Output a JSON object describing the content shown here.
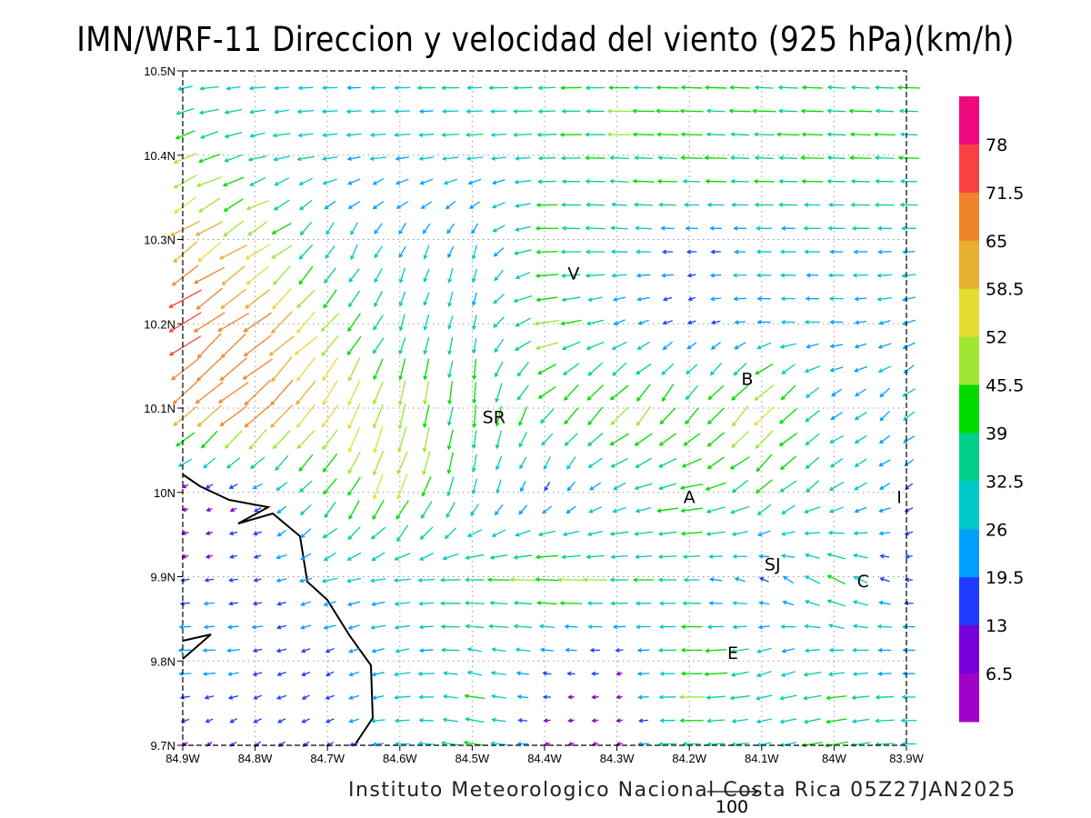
{
  "title": "IMN/WRF-11 Direccion y velocidad del viento (925 hPa)(km/h)",
  "footer": "Instituto Meteorologico Nacional Costa Rica 05Z27JAN2025",
  "chart_data": {
    "type": "vector-field",
    "title": "IMN/WRF-11 Direccion y velocidad del viento (925 hPa)(km/h)",
    "units": "km/h",
    "xlim": [
      -84.9,
      -83.9
    ],
    "ylim": [
      9.7,
      10.5
    ],
    "x_ticks": [
      "84.9W",
      "84.8W",
      "84.7W",
      "84.6W",
      "84.5W",
      "84.4W",
      "84.3W",
      "84.2W",
      "84.1W",
      "84W",
      "83.9W"
    ],
    "y_ticks": [
      "10.5N",
      "10.4N",
      "10.3N",
      "10.2N",
      "10.1N",
      "10N",
      "9.9N",
      "9.8N",
      "9.7N"
    ],
    "grid": "dotted",
    "reference_vector": {
      "value": 100,
      "label": "100"
    },
    "colorbar": {
      "labels": [
        "78",
        "71.5",
        "65",
        "58.5",
        "52",
        "45.5",
        "39",
        "32.5",
        "26",
        "19.5",
        "13",
        "6.5"
      ],
      "thresholds": [
        78,
        71.5,
        65,
        58.5,
        52,
        45.5,
        39,
        32.5,
        26,
        19.5,
        13,
        6.5
      ],
      "colors": [
        "#f0087f",
        "#fa4141",
        "#f0822a",
        "#e6af2d",
        "#e6dc32",
        "#a0e632",
        "#00dc00",
        "#00d28c",
        "#00c8c8",
        "#00a0ff",
        "#1e3cff",
        "#7800dc",
        "#a000c8"
      ]
    },
    "field_grid": {
      "description": "coarse sampled wind: [direction-to (deg, compass), speed km/h] per lon column (84.9W..83.9W) per lat row (10.5N..9.7N)",
      "lats": [
        10.5,
        10.4,
        10.3,
        10.2,
        10.1,
        10.0,
        9.9,
        9.8,
        9.7
      ],
      "lons": [
        -84.9,
        -84.8,
        -84.7,
        -84.6,
        -84.5,
        -84.4,
        -84.3,
        -84.2,
        -84.1,
        -84.0,
        -83.9
      ],
      "dir": [
        [
          265,
          268,
          270,
          270,
          270,
          268,
          270,
          272,
          272,
          272,
          272
        ],
        [
          250,
          255,
          262,
          265,
          265,
          268,
          272,
          272,
          272,
          272,
          272
        ],
        [
          235,
          240,
          210,
          205,
          200,
          270,
          275,
          270,
          270,
          270,
          270
        ],
        [
          235,
          230,
          220,
          200,
          190,
          260,
          250,
          250,
          270,
          270,
          250
        ],
        [
          230,
          225,
          215,
          195,
          185,
          220,
          225,
          215,
          225,
          235,
          230
        ],
        [
          250,
          240,
          215,
          200,
          195,
          200,
          250,
          260,
          230,
          240,
          240
        ],
        [
          260,
          260,
          255,
          265,
          270,
          272,
          270,
          270,
          300,
          300,
          270
        ],
        [
          270,
          260,
          250,
          260,
          280,
          280,
          260,
          270,
          250,
          265,
          270
        ],
        [
          225,
          230,
          240,
          270,
          280,
          250,
          260,
          270,
          260,
          260,
          270
        ]
      ],
      "speed": [
        [
          30,
          30,
          28,
          30,
          32,
          34,
          38,
          40,
          40,
          40,
          38
        ],
        [
          50,
          32,
          28,
          30,
          30,
          36,
          42,
          42,
          40,
          40,
          38
        ],
        [
          62,
          52,
          28,
          26,
          25,
          40,
          30,
          18,
          28,
          28,
          28
        ],
        [
          72,
          65,
          50,
          30,
          30,
          45,
          25,
          15,
          25,
          25,
          25
        ],
        [
          65,
          72,
          55,
          48,
          40,
          40,
          50,
          42,
          55,
          25,
          28
        ],
        [
          8,
          15,
          40,
          55,
          30,
          20,
          28,
          42,
          40,
          32,
          18
        ],
        [
          15,
          16,
          28,
          30,
          42,
          52,
          40,
          30,
          18,
          38,
          12
        ],
        [
          28,
          20,
          18,
          30,
          30,
          18,
          10,
          45,
          30,
          30,
          28
        ],
        [
          10,
          15,
          15,
          28,
          40,
          10,
          10,
          40,
          28,
          45,
          28
        ]
      ]
    },
    "places": [
      {
        "label": "V",
        "lon": -84.36,
        "lat": 10.26
      },
      {
        "label": "SR",
        "lon": -84.47,
        "lat": 10.09
      },
      {
        "label": "B",
        "lon": -84.12,
        "lat": 10.135
      },
      {
        "label": "A",
        "lon": -84.2,
        "lat": 9.995
      },
      {
        "label": "SJ",
        "lon": -84.085,
        "lat": 9.915
      },
      {
        "label": "C",
        "lon": -83.96,
        "lat": 9.895
      },
      {
        "label": "E",
        "lon": -84.14,
        "lat": 9.81
      },
      {
        "label": "I",
        "lon": -83.91,
        "lat": 9.995
      }
    ]
  }
}
